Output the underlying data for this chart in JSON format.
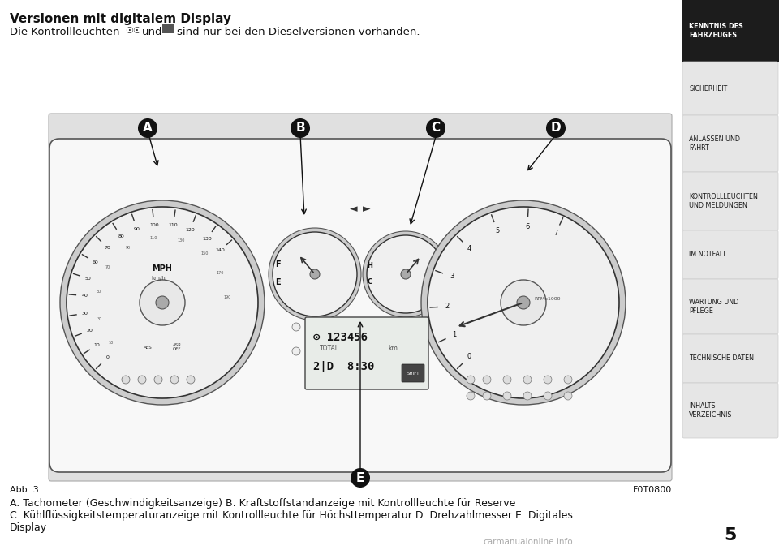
{
  "title": "Versionen mit digitalem Display",
  "subtitle_pre": "Die Kontrollleuchten",
  "subtitle_mid": "und",
  "subtitle_post": "sind nur bei den Dieselversionen vorhanden.",
  "label_A": "A",
  "label_B": "B",
  "label_C": "C",
  "label_D": "D",
  "label_E": "E",
  "fig_label": "Abb. 3",
  "fig_code": "F0T0800",
  "caption_line1": "A. Tachometer (Geschwindigkeitsanzeige) B. Kraftstoffstandanzeige mit Kontrollleuchte für Reserve",
  "caption_line2": "C. Kühlflüssigkeitstemperaturanzeige mit Kontrollleuchte für Höchsttemperatur D. Drehzahlmesser E. Digitales",
  "caption_line3": "Display",
  "sidebar_items": [
    {
      "text": "KENNTNIS DES\nFAHRZEUGES",
      "active": true
    },
    {
      "text": "SICHERHEIT",
      "active": false
    },
    {
      "text": "ANLASSEN UND\nFAHRT",
      "active": false
    },
    {
      "text": "KONTROLLLEUCHTEN\nUND MELDUNGEN",
      "active": false
    },
    {
      "text": "IM NOTFALL",
      "active": false
    },
    {
      "text": "WARTUNG UND\nPFLEGE",
      "active": false
    },
    {
      "text": "TECHNISCHE DATEN",
      "active": false
    },
    {
      "text": "INHALTS-\nVERZEICHNIS",
      "active": false
    }
  ],
  "page_number": "5",
  "watermark": "carmanualonline.info",
  "bg_color": "#ffffff",
  "sidebar_bg_active": "#1c1c1c",
  "sidebar_bg_inactive": "#e6e6e6",
  "sidebar_text_active": "#ffffff",
  "sidebar_text_inactive": "#1a1a1a",
  "diagram_bg": "#e0e0e0",
  "dash_outline": "#888888",
  "dash_inner": "#f5f5f5",
  "gauge_outline": "#333333"
}
